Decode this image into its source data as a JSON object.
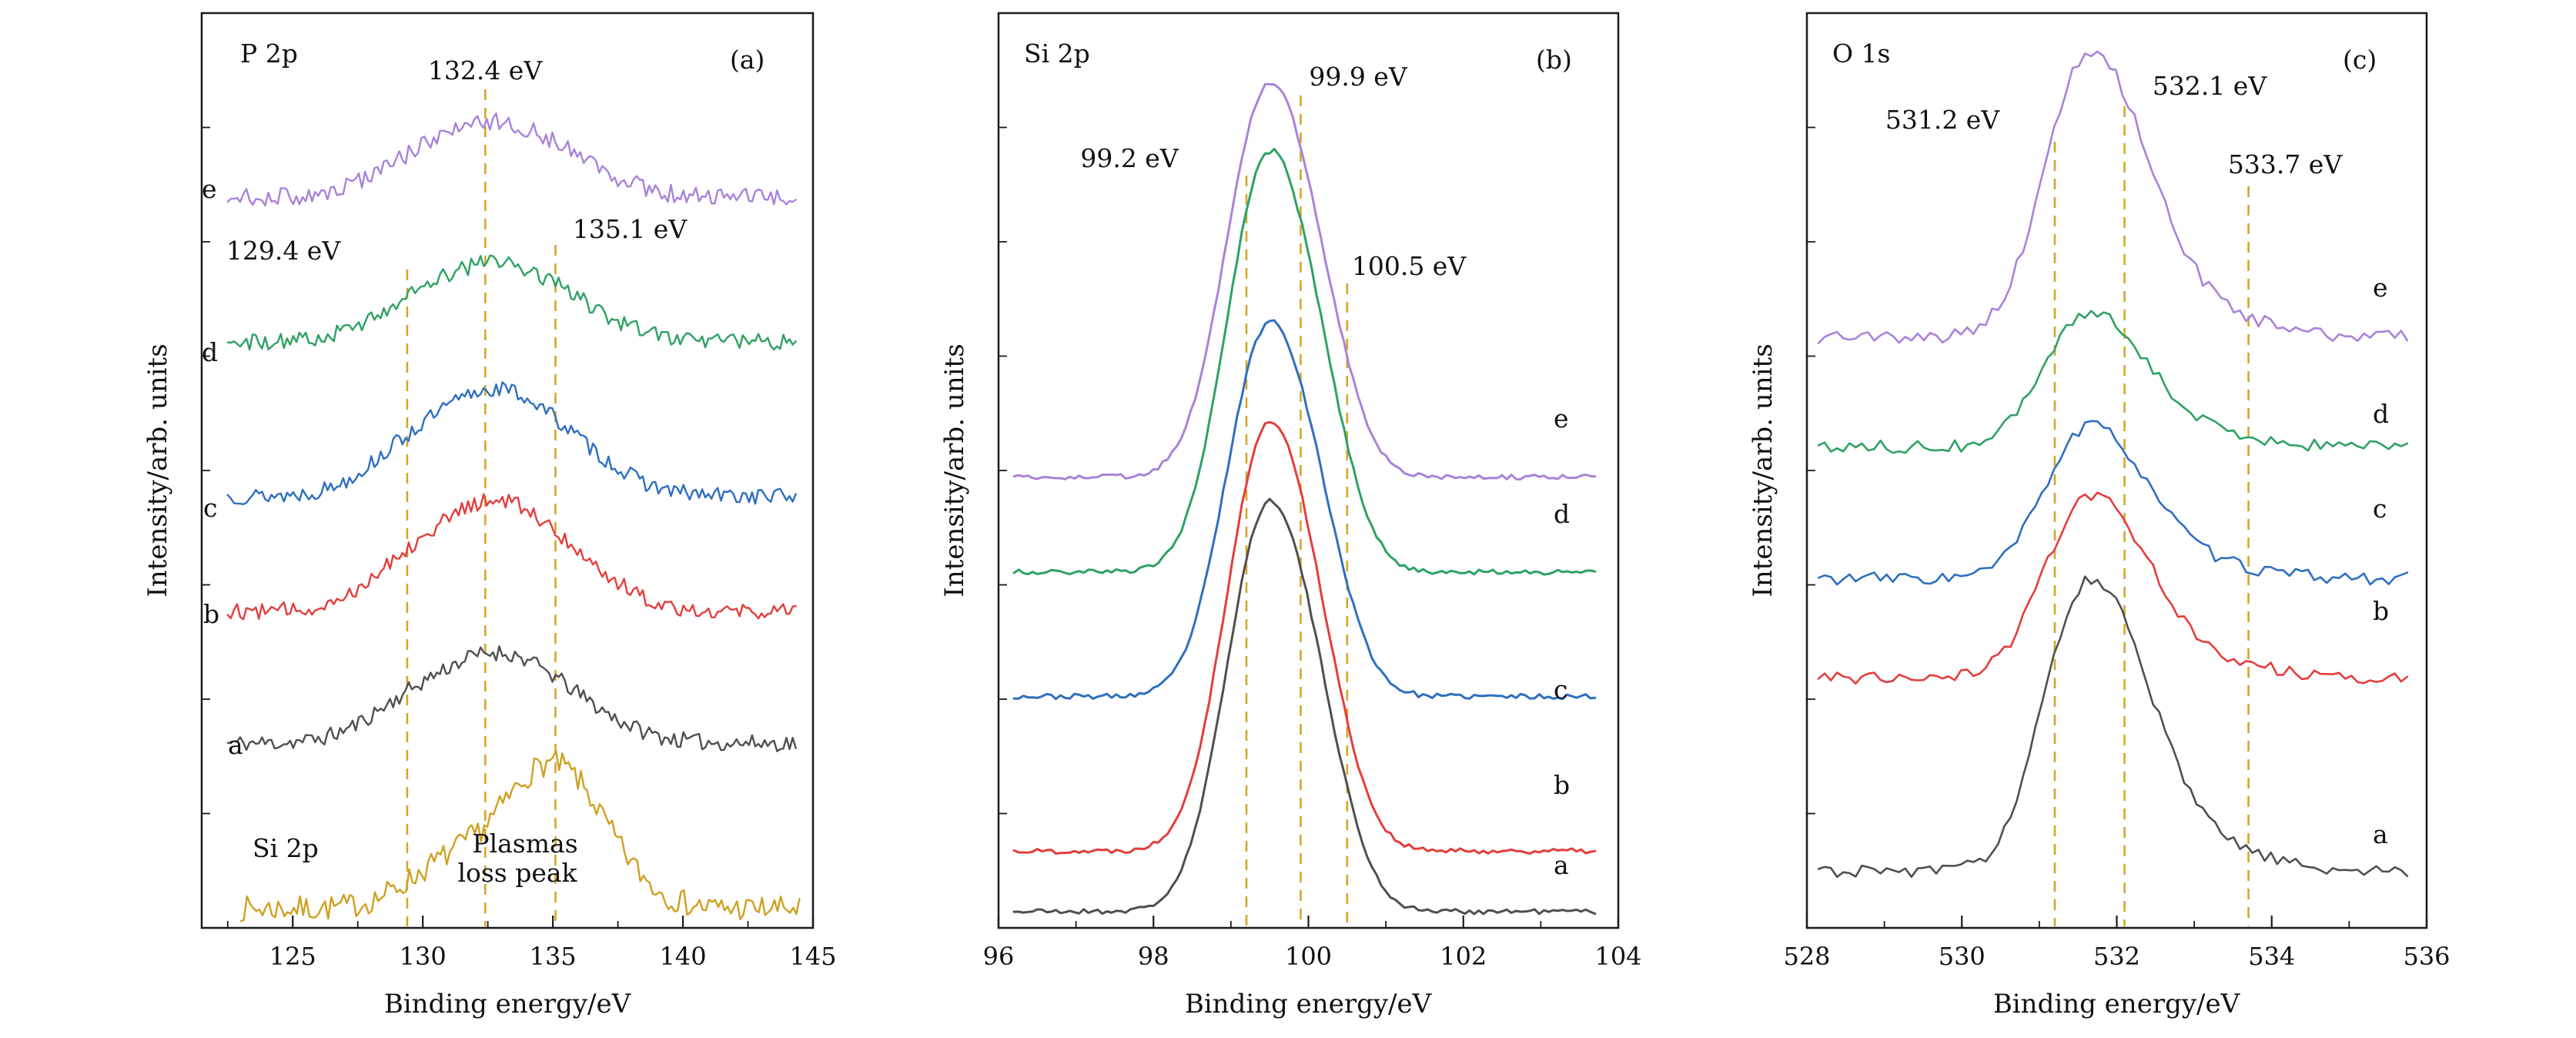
{
  "figure": {
    "background": "#ffffff",
    "axis_color": "#1a1a1a",
    "guide_color": "#d4a62a"
  },
  "chart_data": [
    {
      "type": "line",
      "id": "a",
      "panel_label": "(a)",
      "title": "P 2p",
      "xlabel": "Binding energy/eV",
      "ylabel": "Intensity/arb. units",
      "xlim": [
        121.5,
        145
      ],
      "xticks": [
        125,
        130,
        135,
        140,
        145
      ],
      "xminor_step": 2.5,
      "guides": [
        {
          "value": 129.4,
          "label": "129.4 eV"
        },
        {
          "value": 132.4,
          "label": "132.4 eV"
        },
        {
          "value": 135.1,
          "label": "135.1 eV"
        }
      ],
      "notes": {
        "bottom_series": "Si 2p",
        "annotation_line1": "Plasmas",
        "annotation_line2": "loss peak"
      },
      "series": [
        {
          "name": "si2p-plasma-loss",
          "label": "",
          "color": "#cfa020",
          "baseline": 0.021,
          "amp": 0.158,
          "noise": 0.014,
          "seed": 7,
          "span": [
            123.0,
            144.5
          ],
          "step": 0.12,
          "peaks": [
            [
              135.0,
              1.0,
              2.0
            ],
            [
              130.8,
              0.25,
              1.6
            ]
          ]
        },
        {
          "name": "curve-a",
          "label": "a",
          "color": "#4f4f4f",
          "baseline": 0.202,
          "amp": 0.098,
          "noise": 0.009,
          "seed": 11,
          "span": [
            122.5,
            144.4
          ],
          "step": 0.12,
          "peaks": [
            [
              129.4,
              0.36,
              1.7
            ],
            [
              132.4,
              0.72,
              1.9
            ],
            [
              135.1,
              0.47,
              2.1
            ]
          ]
        },
        {
          "name": "curve-b",
          "label": "b",
          "color": "#e43d3d",
          "baseline": 0.346,
          "amp": 0.12,
          "noise": 0.009,
          "seed": 12,
          "span": [
            122.5,
            144.4
          ],
          "step": 0.12,
          "peaks": [
            [
              129.4,
              0.36,
              1.7
            ],
            [
              132.4,
              0.72,
              1.9
            ],
            [
              135.1,
              0.47,
              2.1
            ]
          ]
        },
        {
          "name": "curve-c",
          "label": "c",
          "color": "#2e6fc0",
          "baseline": 0.472,
          "amp": 0.116,
          "noise": 0.009,
          "seed": 13,
          "span": [
            122.5,
            144.4
          ],
          "step": 0.12,
          "peaks": [
            [
              129.4,
              0.36,
              1.7
            ],
            [
              132.4,
              0.72,
              1.9
            ],
            [
              135.1,
              0.47,
              2.1
            ]
          ]
        },
        {
          "name": "curve-d",
          "label": "d",
          "color": "#2ea164",
          "baseline": 0.641,
          "amp": 0.086,
          "noise": 0.009,
          "seed": 14,
          "span": [
            122.5,
            144.4
          ],
          "step": 0.12,
          "peaks": [
            [
              129.4,
              0.36,
              1.7
            ],
            [
              132.4,
              0.72,
              1.9
            ],
            [
              135.1,
              0.47,
              2.1
            ]
          ]
        },
        {
          "name": "curve-e",
          "label": "e",
          "color": "#a883d9",
          "baseline": 0.799,
          "amp": 0.081,
          "noise": 0.01,
          "seed": 15,
          "span": [
            122.5,
            144.4
          ],
          "step": 0.12,
          "peaks": [
            [
              129.4,
              0.36,
              1.7
            ],
            [
              132.4,
              0.72,
              1.9
            ],
            [
              135.1,
              0.47,
              2.1
            ]
          ]
        }
      ]
    },
    {
      "type": "line",
      "id": "b",
      "panel_label": "(b)",
      "title": "Si 2p",
      "xlabel": "Binding energy/eV",
      "ylabel": "Intensity/arb. units",
      "xlim": [
        96,
        104
      ],
      "xticks": [
        96,
        98,
        100,
        102,
        104
      ],
      "xminor_step": 1,
      "guides": [
        {
          "value": 99.2,
          "label": "99.2 eV"
        },
        {
          "value": 99.9,
          "label": "99.9 eV"
        },
        {
          "value": 100.5,
          "label": "100.5 eV"
        }
      ],
      "series": [
        {
          "name": "curve-a",
          "label": "a",
          "color": "#4f4f4f",
          "baseline": 0.018,
          "amp": 0.395,
          "noise": 0.0028,
          "seed": 21,
          "span": [
            96.2,
            103.75
          ],
          "step": 0.06,
          "peaks": [
            [
              99.4,
              1.0,
              0.5
            ],
            [
              100.1,
              0.38,
              0.45
            ]
          ]
        },
        {
          "name": "curve-b",
          "label": "b",
          "color": "#e43d3d",
          "baseline": 0.084,
          "amp": 0.413,
          "noise": 0.0028,
          "seed": 22,
          "span": [
            96.2,
            103.75
          ],
          "step": 0.06,
          "peaks": [
            [
              99.4,
              1.0,
              0.5
            ],
            [
              100.1,
              0.38,
              0.45
            ]
          ]
        },
        {
          "name": "curve-c",
          "label": "c",
          "color": "#2e6fc0",
          "baseline": 0.253,
          "amp": 0.361,
          "noise": 0.0028,
          "seed": 23,
          "span": [
            96.2,
            103.75
          ],
          "step": 0.06,
          "peaks": [
            [
              99.4,
              1.0,
              0.5
            ],
            [
              100.1,
              0.38,
              0.45
            ]
          ]
        },
        {
          "name": "curve-d",
          "label": "d",
          "color": "#2ea164",
          "baseline": 0.389,
          "amp": 0.405,
          "noise": 0.0028,
          "seed": 24,
          "span": [
            96.2,
            103.75
          ],
          "step": 0.06,
          "peaks": [
            [
              99.4,
              1.0,
              0.5
            ],
            [
              100.1,
              0.38,
              0.45
            ]
          ]
        },
        {
          "name": "curve-e",
          "label": "e",
          "color": "#a883d9",
          "baseline": 0.493,
          "amp": 0.38,
          "noise": 0.0028,
          "seed": 25,
          "span": [
            96.2,
            103.75
          ],
          "step": 0.06,
          "peaks": [
            [
              99.4,
              1.0,
              0.5
            ],
            [
              100.1,
              0.38,
              0.45
            ]
          ]
        }
      ]
    },
    {
      "type": "line",
      "id": "c",
      "panel_label": "(c)",
      "title": "O 1s",
      "xlabel": "Binding energy/eV",
      "ylabel": "Intensity/arb. units",
      "xlim": [
        528,
        536
      ],
      "xticks": [
        528,
        530,
        532,
        534,
        536
      ],
      "xminor_step": 1,
      "guides": [
        {
          "value": 531.2,
          "label": "531.2 eV"
        },
        {
          "value": 532.1,
          "label": "532.1 eV"
        },
        {
          "value": 533.7,
          "label": "533.7 eV"
        }
      ],
      "series": [
        {
          "name": "curve-a",
          "label": "a",
          "color": "#4f4f4f",
          "baseline": 0.062,
          "amp": 0.262,
          "noise": 0.007,
          "seed": 31,
          "span": [
            528.15,
            535.8
          ],
          "step": 0.08,
          "peaks": [
            [
              531.45,
              0.85,
              0.5
            ],
            [
              532.15,
              0.65,
              0.55
            ],
            [
              533.2,
              0.1,
              0.7
            ]
          ]
        },
        {
          "name": "curve-b",
          "label": "b",
          "color": "#e43d3d",
          "baseline": 0.274,
          "amp": 0.163,
          "noise": 0.007,
          "seed": 32,
          "span": [
            528.15,
            535.8
          ],
          "step": 0.08,
          "peaks": [
            [
              531.45,
              0.85,
              0.5
            ],
            [
              532.15,
              0.65,
              0.55
            ],
            [
              533.2,
              0.1,
              0.7
            ]
          ]
        },
        {
          "name": "curve-c",
          "label": "c",
          "color": "#2e6fc0",
          "baseline": 0.382,
          "amp": 0.136,
          "noise": 0.007,
          "seed": 33,
          "span": [
            528.15,
            535.8
          ],
          "step": 0.08,
          "peaks": [
            [
              531.45,
              0.85,
              0.5
            ],
            [
              532.15,
              0.65,
              0.55
            ],
            [
              533.2,
              0.1,
              0.7
            ]
          ]
        },
        {
          "name": "curve-d",
          "label": "d",
          "color": "#2ea164",
          "baseline": 0.526,
          "amp": 0.119,
          "noise": 0.007,
          "seed": 34,
          "span": [
            528.15,
            535.8
          ],
          "step": 0.08,
          "peaks": [
            [
              531.45,
              0.85,
              0.5
            ],
            [
              532.15,
              0.65,
              0.55
            ],
            [
              533.2,
              0.1,
              0.7
            ]
          ]
        },
        {
          "name": "curve-e",
          "label": "e",
          "color": "#a883d9",
          "baseline": 0.646,
          "amp": 0.255,
          "noise": 0.007,
          "seed": 35,
          "span": [
            528.15,
            535.8
          ],
          "step": 0.08,
          "peaks": [
            [
              531.45,
              0.85,
              0.5
            ],
            [
              532.15,
              0.65,
              0.55
            ],
            [
              533.2,
              0.1,
              0.7
            ]
          ]
        }
      ]
    }
  ]
}
